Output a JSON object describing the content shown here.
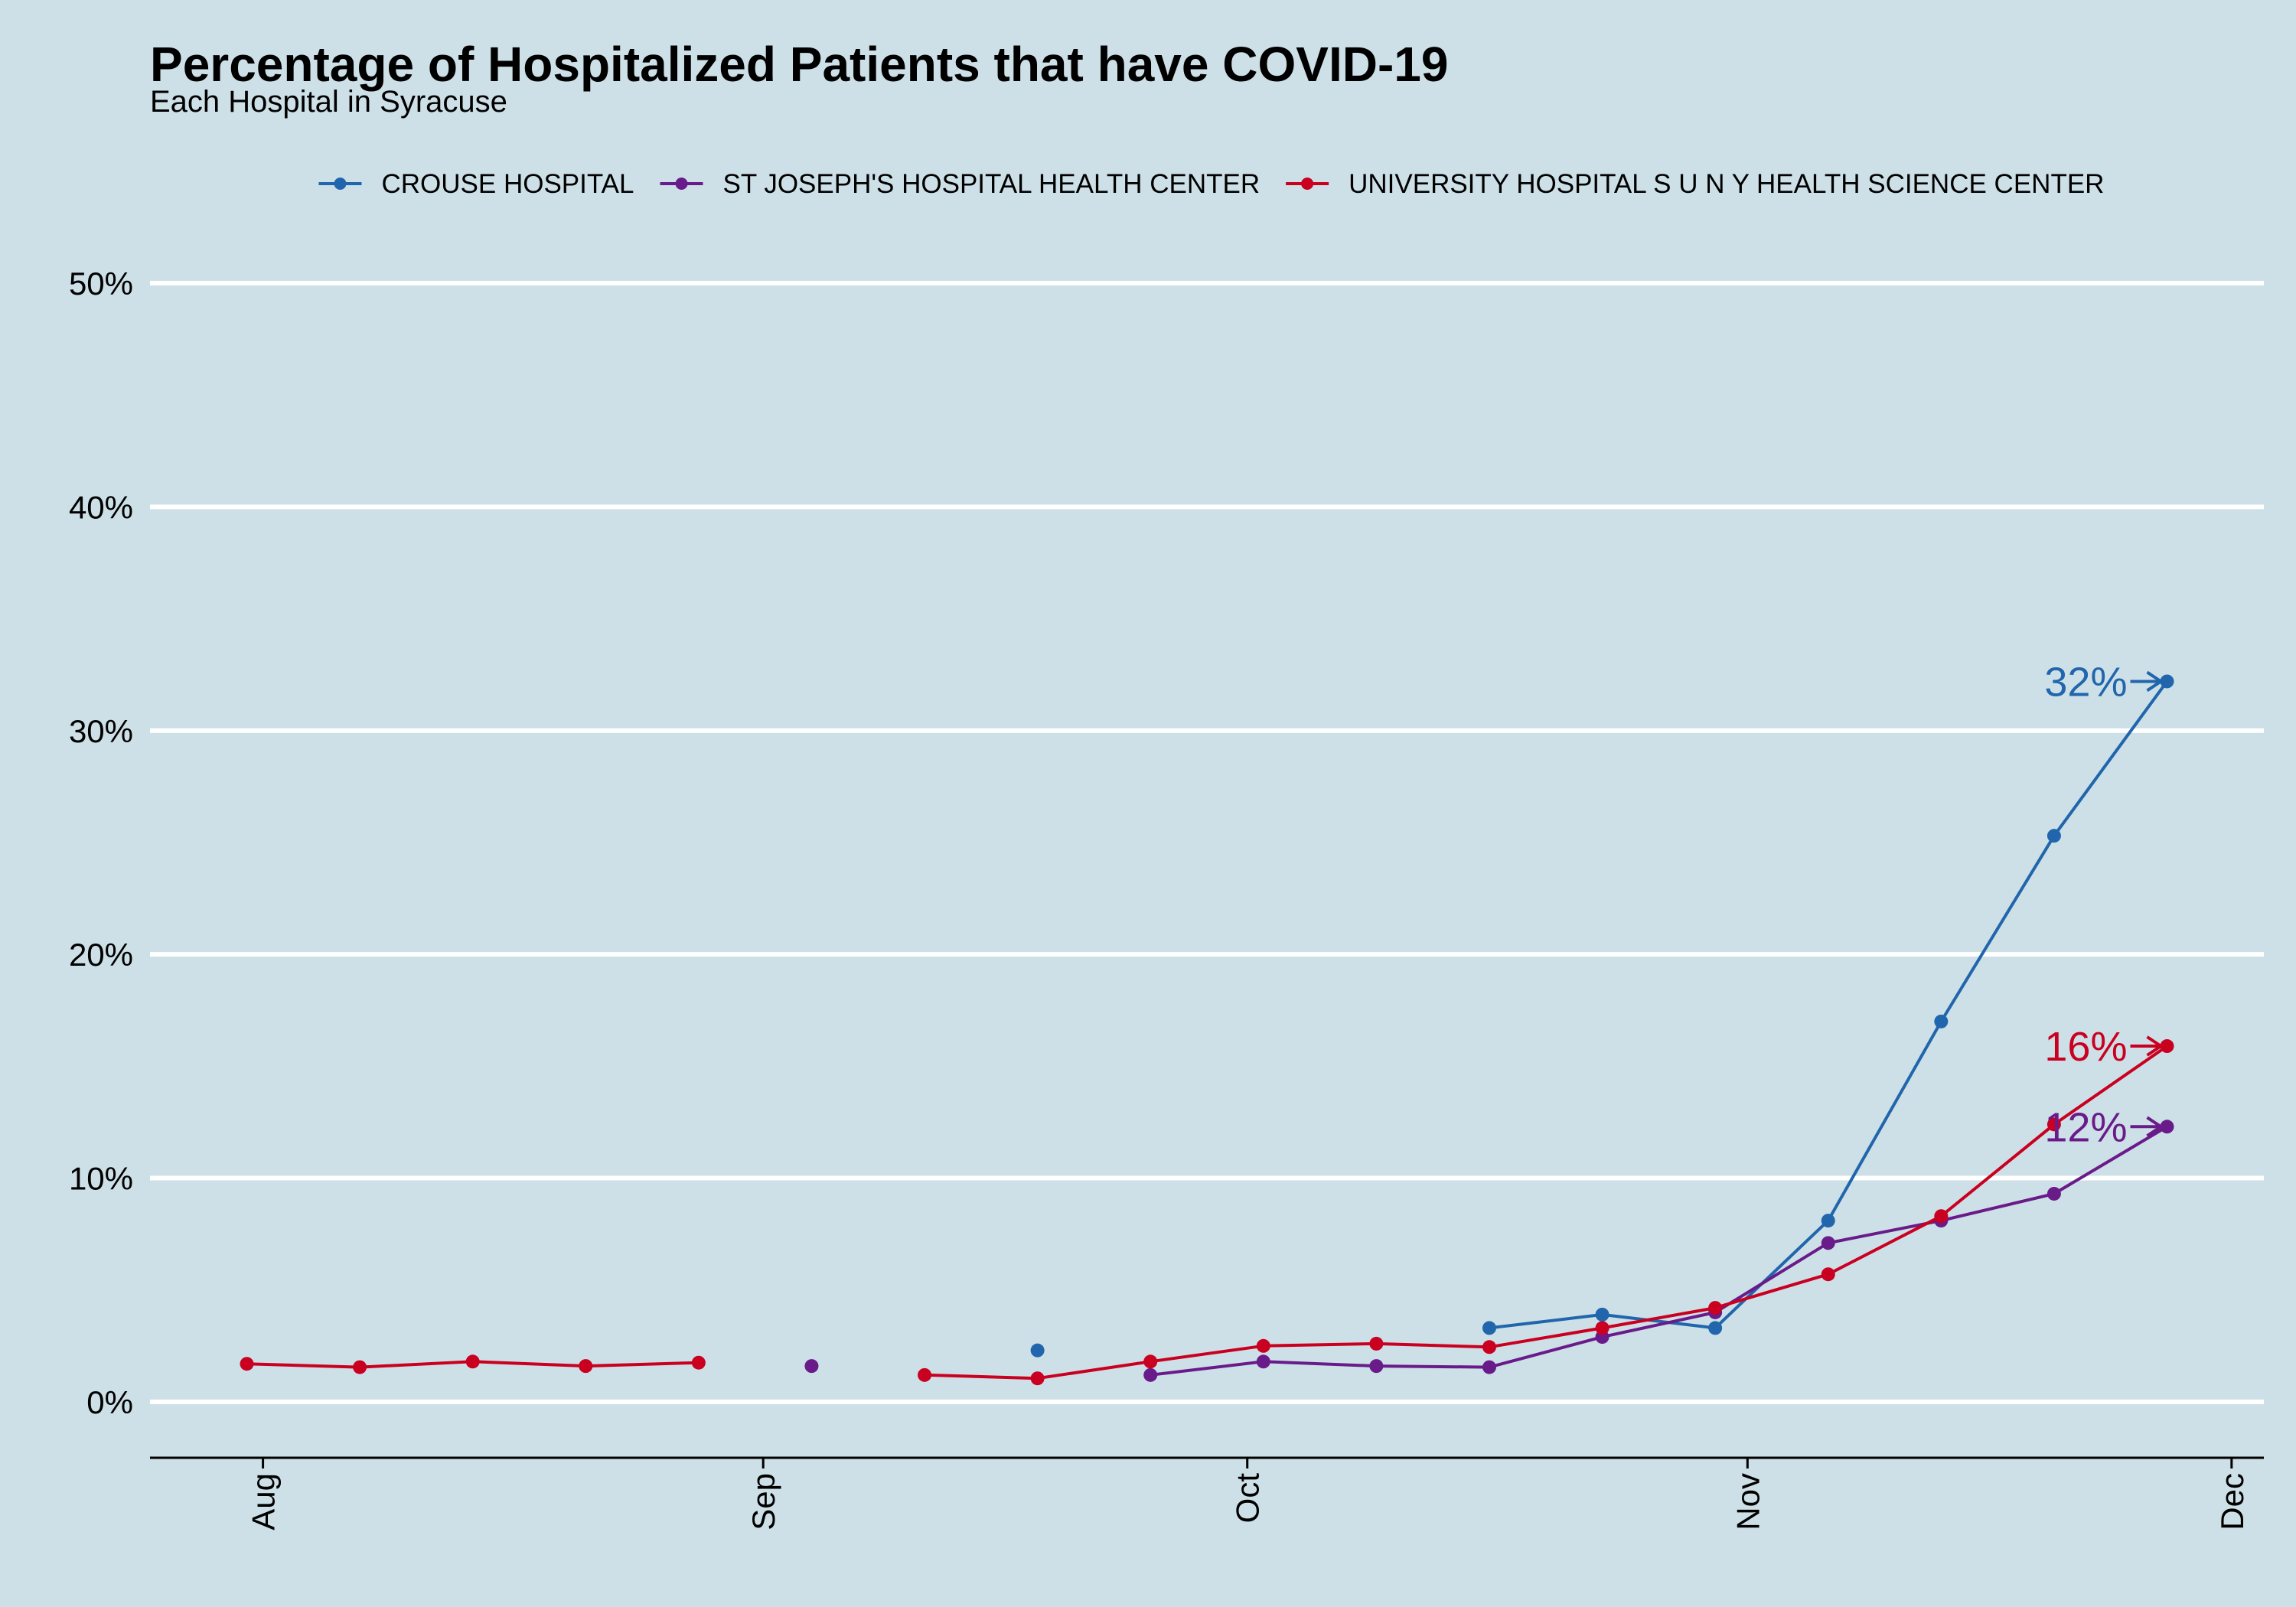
{
  "chart_data": {
    "type": "line",
    "title": "Percentage of Hospitalized Patients that have COVID-19",
    "subtitle": "Each Hospital in Syracuse",
    "xlabel": "",
    "ylabel": "",
    "x_ticks": [
      {
        "label": "Aug",
        "date": "2020-08-01"
      },
      {
        "label": "Sep",
        "date": "2020-09-01"
      },
      {
        "label": "Oct",
        "date": "2020-10-01"
      },
      {
        "label": "Nov",
        "date": "2020-11-01"
      },
      {
        "label": "Dec",
        "date": "2020-12-01"
      }
    ],
    "y_ticks": [
      {
        "label": "0%",
        "value": 0
      },
      {
        "label": "10%",
        "value": 10
      },
      {
        "label": "20%",
        "value": 20
      },
      {
        "label": "30%",
        "value": 30
      },
      {
        "label": "40%",
        "value": 40
      },
      {
        "label": "50%",
        "value": 50
      }
    ],
    "ylim": [
      -2.5,
      50
    ],
    "xlim": [
      "2020-07-25",
      "2020-12-03"
    ],
    "grid": "horizontal major lines",
    "legend_position": "top",
    "series": [
      {
        "name": "CROUSE HOSPITAL",
        "color": "#2166ac",
        "end_label": "32%",
        "points": [
          {
            "x": "2020-09-18",
            "y": 2.3
          },
          {
            "x": "2020-10-16",
            "y": 3.3
          },
          {
            "x": "2020-10-23",
            "y": 3.9
          },
          {
            "x": "2020-10-30",
            "y": 3.3
          },
          {
            "x": "2020-11-06",
            "y": 8.1
          },
          {
            "x": "2020-11-13",
            "y": 17.0
          },
          {
            "x": "2020-11-20",
            "y": 25.3
          },
          {
            "x": "2020-11-27",
            "y": 32.2
          }
        ],
        "segments": [
          [
            0
          ],
          [
            1,
            2,
            3,
            4,
            5,
            6,
            7
          ]
        ]
      },
      {
        "name": "ST JOSEPH'S HOSPITAL HEALTH CENTER",
        "color": "#6a1b8a",
        "end_label": "12%",
        "points": [
          {
            "x": "2020-09-04",
            "y": 1.6
          },
          {
            "x": "2020-09-25",
            "y": 1.2
          },
          {
            "x": "2020-10-02",
            "y": 1.8
          },
          {
            "x": "2020-10-09",
            "y": 1.6
          },
          {
            "x": "2020-10-16",
            "y": 1.55
          },
          {
            "x": "2020-10-23",
            "y": 2.9
          },
          {
            "x": "2020-10-30",
            "y": 4.0
          },
          {
            "x": "2020-11-06",
            "y": 7.1
          },
          {
            "x": "2020-11-13",
            "y": 8.1
          },
          {
            "x": "2020-11-20",
            "y": 9.3
          },
          {
            "x": "2020-11-27",
            "y": 12.3
          }
        ],
        "segments": [
          [
            0
          ],
          [
            1,
            2,
            3,
            4,
            5,
            6,
            7,
            8,
            9,
            10
          ]
        ]
      },
      {
        "name": "UNIVERSITY HOSPITAL S U N Y HEALTH SCIENCE CENTER",
        "color": "#ca0020",
        "end_label": "16%",
        "points": [
          {
            "x": "2020-07-31",
            "y": 1.7
          },
          {
            "x": "2020-08-07",
            "y": 1.55
          },
          {
            "x": "2020-08-14",
            "y": 1.8
          },
          {
            "x": "2020-08-21",
            "y": 1.6
          },
          {
            "x": "2020-08-28",
            "y": 1.75
          },
          {
            "x": "2020-09-11",
            "y": 1.2
          },
          {
            "x": "2020-09-18",
            "y": 1.05
          },
          {
            "x": "2020-09-25",
            "y": 1.8
          },
          {
            "x": "2020-10-02",
            "y": 2.5
          },
          {
            "x": "2020-10-09",
            "y": 2.6
          },
          {
            "x": "2020-10-16",
            "y": 2.45
          },
          {
            "x": "2020-10-23",
            "y": 3.3
          },
          {
            "x": "2020-10-30",
            "y": 4.2
          },
          {
            "x": "2020-11-06",
            "y": 5.7
          },
          {
            "x": "2020-11-13",
            "y": 8.3
          },
          {
            "x": "2020-11-20",
            "y": 12.4
          },
          {
            "x": "2020-11-27",
            "y": 15.9
          }
        ],
        "segments": [
          [
            0,
            1,
            2,
            3,
            4
          ],
          [
            5,
            6,
            7,
            8,
            9,
            10,
            11,
            12,
            13,
            14,
            15,
            16
          ]
        ]
      }
    ]
  },
  "colors": {
    "background": "#cde0e7",
    "gridline": "#ffffff",
    "axis": "#000000"
  }
}
